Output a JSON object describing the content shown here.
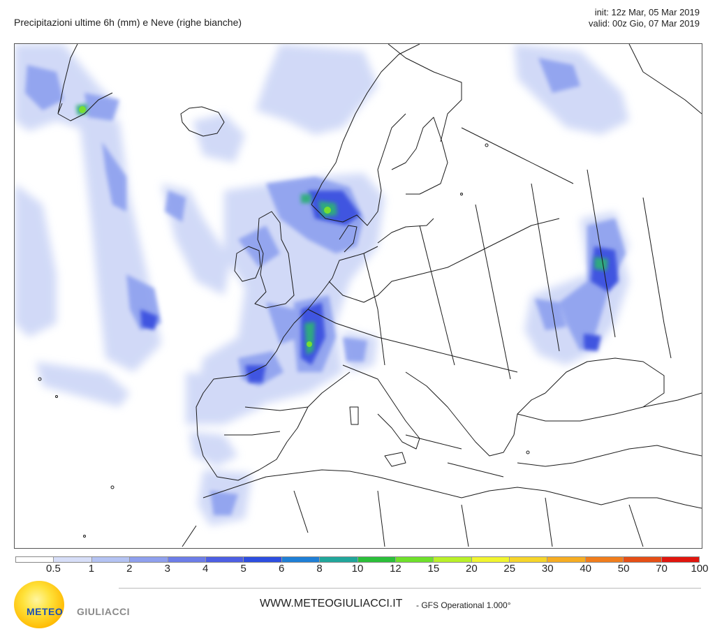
{
  "header": {
    "title": "Precipitazioni ultime 6h (mm) e Neve (righe bianche)",
    "init": "init: 12z Mar, 05 Mar 2019",
    "valid": "valid: 00z Gio, 07 Mar 2019"
  },
  "legend": {
    "colors": [
      "#ffffff",
      "#d7def8",
      "#b4c3f3",
      "#8fa0ee",
      "#6c7de8",
      "#4d5fe3",
      "#2d4ee0",
      "#1f7fd6",
      "#21a69b",
      "#2cbf3a",
      "#6fe02c",
      "#b9f02a",
      "#f1f530",
      "#f6d52b",
      "#f6ad23",
      "#f07d1d",
      "#e54f16",
      "#e0160e"
    ],
    "labels": [
      "0.5",
      "1",
      "2",
      "3",
      "4",
      "5",
      "6",
      "8",
      "10",
      "12",
      "15",
      "20",
      "25",
      "30",
      "40",
      "50",
      "70",
      "100"
    ]
  },
  "footer": {
    "logo_part1": "METEO",
    "logo_part2": "GIULIACCI",
    "website": "WWW.METEOGIULIACCI.IT",
    "model": "- GFS Operational 1.000°"
  }
}
